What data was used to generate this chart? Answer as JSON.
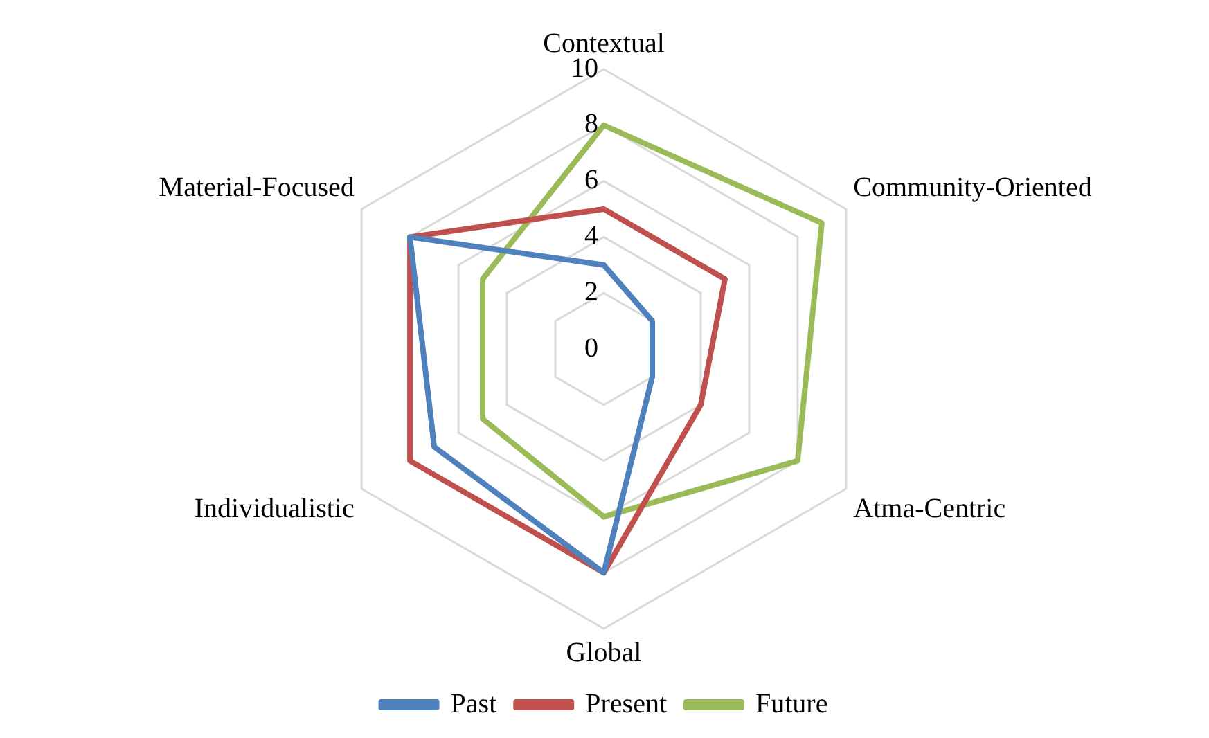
{
  "chart_data": {
    "type": "radar",
    "categories": [
      "Contextual",
      "Community-Oriented",
      "Atma-Centric",
      "Global",
      "Individualistic",
      "Material-Focused"
    ],
    "series": [
      {
        "name": "Past",
        "color": "#4f81bd",
        "values": [
          3,
          2,
          2,
          8,
          7,
          8
        ]
      },
      {
        "name": "Present",
        "color": "#c0504d",
        "values": [
          5,
          5,
          4,
          8,
          8,
          8
        ]
      },
      {
        "name": "Future",
        "color": "#9bbb59",
        "values": [
          8,
          9,
          8,
          6,
          5,
          5
        ]
      }
    ],
    "ylim": [
      0,
      10
    ],
    "yticks": [
      0,
      2,
      4,
      6,
      8,
      10
    ],
    "grid": true,
    "legend": "bottom",
    "marker": "none",
    "line_style": "solid"
  }
}
